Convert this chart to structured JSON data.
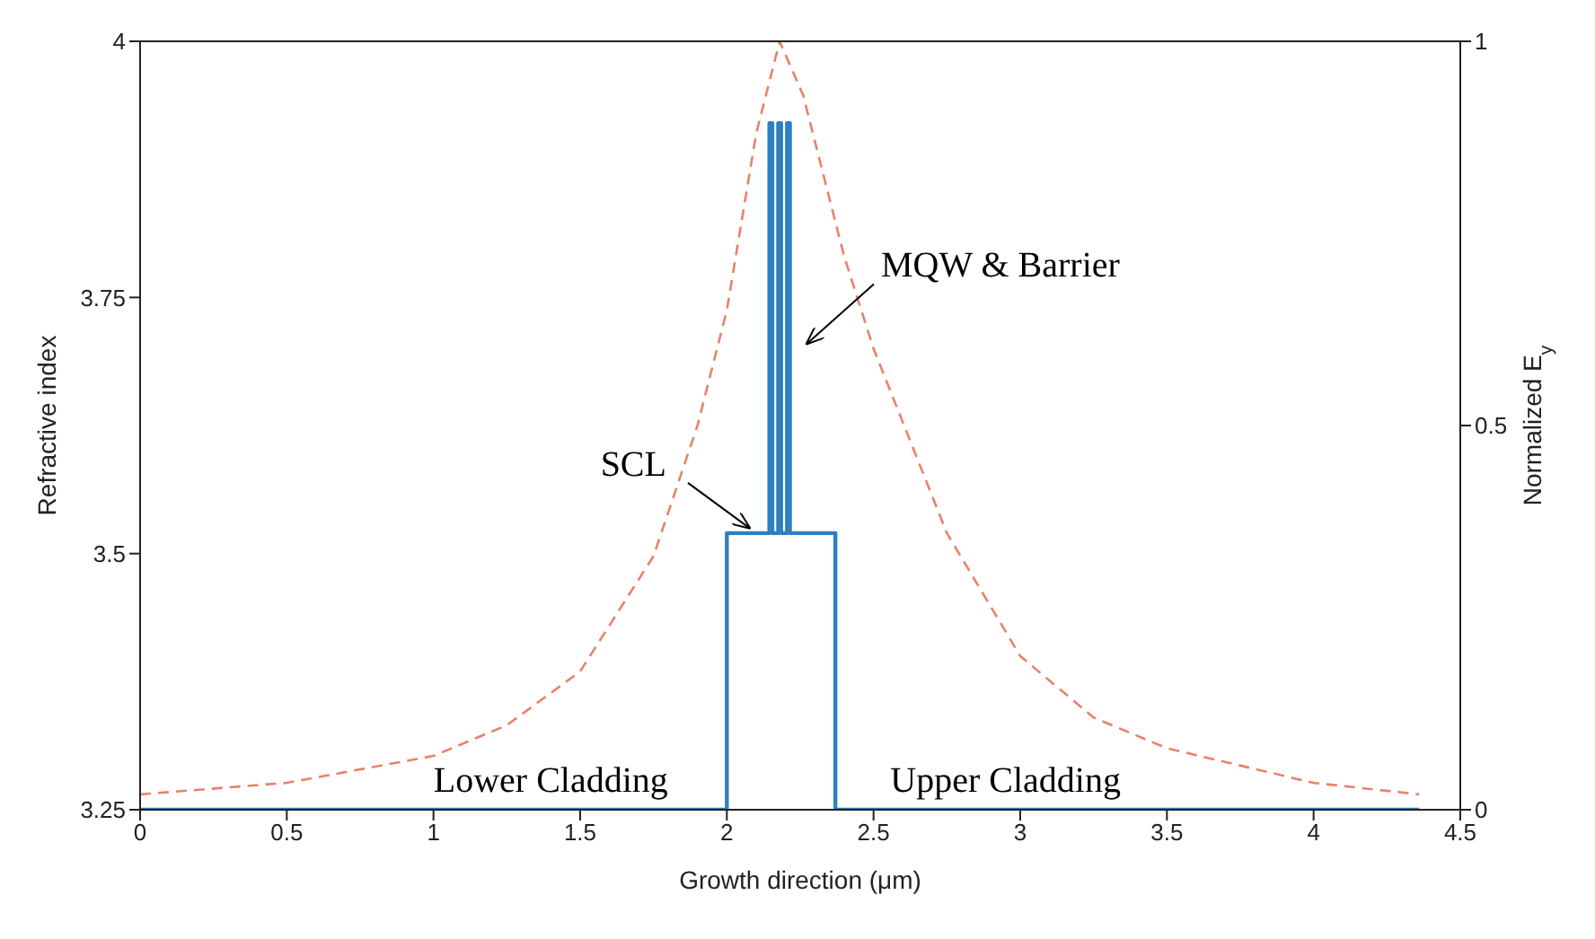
{
  "chart_data": {
    "type": "line",
    "xlabel": "Growth direction (μm)",
    "ylabel": "Refractive index",
    "y2label": "Normalized E$_{y}$",
    "xlim": [
      0,
      4.5
    ],
    "xticks": [
      0,
      0.5,
      1,
      1.5,
      2,
      2.5,
      3,
      3.5,
      4,
      4.5
    ],
    "ylim": [
      3.25,
      4
    ],
    "yticks": [
      3.25,
      3.5,
      3.75,
      4
    ],
    "y2lim": [
      0,
      1
    ],
    "y2ticks": [
      0,
      0.5,
      1
    ],
    "legend": false,
    "marker": "none",
    "series": [
      {
        "color": "#2f7fc1",
        "line_style": "solid",
        "x": [
          0,
          2.0,
          2.0,
          2.145,
          2.145,
          2.155,
          2.155,
          2.175,
          2.175,
          2.185,
          2.185,
          2.205,
          2.205,
          2.215,
          2.215,
          2.37,
          2.37,
          4.36
        ],
        "values": [
          3.25,
          3.25,
          3.52,
          3.52,
          3.92,
          3.92,
          3.52,
          3.52,
          3.92,
          3.92,
          3.52,
          3.52,
          3.92,
          3.92,
          3.52,
          3.52,
          3.25,
          3.25
        ]
      },
      {
        "color": "#e8826a",
        "line_style": "dashed",
        "axis": "y2",
        "x": [
          0,
          0.5,
          1,
          1.25,
          1.5,
          1.75,
          1.9,
          2.0,
          2.1,
          2.18,
          2.26,
          2.4,
          2.5,
          2.75,
          3,
          3.25,
          3.5,
          4,
          4.36
        ],
        "values": [
          0.02,
          0.035,
          0.07,
          0.11,
          0.18,
          0.33,
          0.5,
          0.65,
          0.88,
          1,
          0.93,
          0.72,
          0.6,
          0.36,
          0.2,
          0.12,
          0.08,
          0.035,
          0.02
        ]
      }
    ],
    "annotations": [
      {
        "text": "SCL",
        "x": 2.1,
        "y": 3.52
      },
      {
        "text": "MQW & Barrier",
        "x": 2.25,
        "y": 3.7
      },
      {
        "text": "Lower Cladding",
        "x": 1.4,
        "y": 3.25
      },
      {
        "text": "Upper Cladding",
        "x": 2.95,
        "y": 3.25
      }
    ]
  }
}
